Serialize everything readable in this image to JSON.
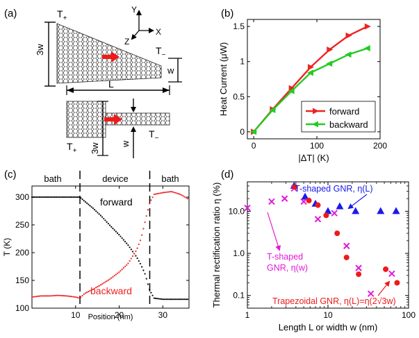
{
  "panel_a": {
    "label": "(a)",
    "t_plus_top": "T",
    "t_plus_top_sub": "+",
    "t_minus_top": "T",
    "t_minus_top_sub": "−",
    "t_plus_bottom": "T",
    "t_plus_bottom_sub": "+",
    "t_minus_bottom": "T",
    "t_minus_bottom_sub": "−",
    "dim_3w_top": "3w",
    "dim_w_top": "w",
    "dim_L": "L",
    "dim_3w_bottom": "3w",
    "dim_w_bottom": "w",
    "axis_y": "Y",
    "axis_x": "X",
    "axis_z": "Z"
  },
  "panel_c_labels": {
    "label": "(c)",
    "bath_left": "bath",
    "device": "device",
    "bath_right": "bath",
    "forward": "forward",
    "backward": "backward"
  },
  "panel_d_labels": {
    "label": "(d)",
    "t_shaped_L": "T-shaped GNR, η(L)",
    "t_shaped_w_line1": "T-shaped",
    "t_shaped_w_line2": "GNR, η(w)",
    "trapezoidal": "Trapezoidal GNR, η(L)=η(2√3w)"
  },
  "chart_data": [
    {
      "id": "b",
      "label": "(b)",
      "type": "line",
      "xlabel": "|ΔT| (K)",
      "ylabel": "Heat Current (μW)",
      "xlim": [
        -10,
        200
      ],
      "ylim": [
        -0.1,
        1.6
      ],
      "xticks": [
        0,
        100,
        200
      ],
      "yticks": [
        0,
        0.5,
        1,
        1.5
      ],
      "xtick_labels": [
        "0",
        "100",
        "200"
      ],
      "ytick_labels": [
        "0",
        "0.5",
        "1",
        "1.5"
      ],
      "legend": "lower-right",
      "series": [
        {
          "name": "forward",
          "color": "#ee2222",
          "x": [
            0,
            30,
            60,
            90,
            120,
            150,
            180
          ],
          "y": [
            0,
            0.32,
            0.62,
            0.92,
            1.17,
            1.37,
            1.5
          ]
        },
        {
          "name": "backward",
          "color": "#22cc22",
          "x": [
            0,
            30,
            60,
            90,
            120,
            150,
            180
          ],
          "y": [
            0,
            0.31,
            0.58,
            0.84,
            0.97,
            1.1,
            1.19
          ]
        }
      ]
    },
    {
      "id": "c",
      "type": "scatter",
      "xlabel": "Position (nm)",
      "ylabel": "T (K)",
      "xlim": [
        0,
        36
      ],
      "ylim": [
        100,
        320
      ],
      "xticks": [
        10,
        20,
        30
      ],
      "yticks": [
        100,
        150,
        200,
        250,
        300
      ],
      "xtick_labels": [
        "10",
        "20",
        "30"
      ],
      "ytick_labels": [
        "100",
        "150",
        "200",
        "250",
        "300"
      ],
      "dividers_x": [
        11,
        27
      ],
      "series": [
        {
          "name": "forward",
          "color": "#000000",
          "x": [
            0,
            2,
            4,
            6,
            8,
            10,
            11,
            12,
            14,
            16,
            18,
            20,
            22,
            24,
            25,
            26,
            27,
            28,
            30,
            32,
            34,
            36
          ],
          "y": [
            300,
            300,
            300,
            300,
            300,
            300,
            300,
            293,
            280,
            265,
            248,
            232,
            214,
            192,
            178,
            160,
            132,
            118,
            116,
            116,
            116,
            116
          ]
        },
        {
          "name": "backward",
          "color": "#ee2222",
          "x": [
            0,
            2,
            4,
            6,
            8,
            10,
            11,
            12,
            14,
            16,
            18,
            20,
            22,
            24,
            25,
            26,
            27,
            28,
            30,
            32,
            34,
            36
          ],
          "y": [
            120,
            122,
            122,
            123,
            122,
            120,
            118,
            126,
            134,
            143,
            153,
            165,
            180,
            205,
            225,
            258,
            290,
            305,
            308,
            310,
            305,
            296
          ]
        }
      ]
    },
    {
      "id": "d",
      "type": "scatter",
      "xlabel": "Length L or width w (nm)",
      "ylabel": "Thermal rectification ratio  η (%)",
      "xscale": "log",
      "yscale": "log",
      "xlim": [
        1,
        100
      ],
      "ylim": [
        0.05,
        50
      ],
      "xticks": [
        1,
        10,
        100
      ],
      "yticks": [
        0.1,
        1,
        10
      ],
      "xtick_labels": [
        "1",
        "10",
        "100"
      ],
      "ytick_labels": [
        "0.1",
        "1.0",
        "10.0"
      ],
      "series": [
        {
          "name": "T-shaped GNR, η(L)",
          "marker": "triangle",
          "color": "#1a1aee",
          "x": [
            3.8,
            5.2,
            7,
            10,
            14,
            22,
            45,
            70
          ],
          "y": [
            40,
            22,
            15,
            10,
            13,
            10,
            10,
            10
          ]
        },
        {
          "name": "T-shaped GNR, η(w)",
          "marker": "x",
          "color": "#e01ad8",
          "x": [
            1,
            2,
            2.9,
            3.8,
            5,
            7.5,
            12,
            17,
            24,
            34,
            62
          ],
          "y": [
            12,
            17,
            20,
            35,
            17,
            6.5,
            9,
            1.5,
            0.45,
            0.11,
            0.33
          ]
        },
        {
          "name": "Trapezoidal GNR, η(L)=η(2√3w)",
          "marker": "circle",
          "color": "#ee1a1a",
          "x": [
            3.9,
            5.8,
            7.5,
            9.5,
            13,
            17,
            24,
            52,
            72
          ],
          "y": [
            38,
            18,
            14,
            8,
            3,
            0.8,
            0.32,
            0.42,
            0.2
          ]
        }
      ]
    }
  ]
}
